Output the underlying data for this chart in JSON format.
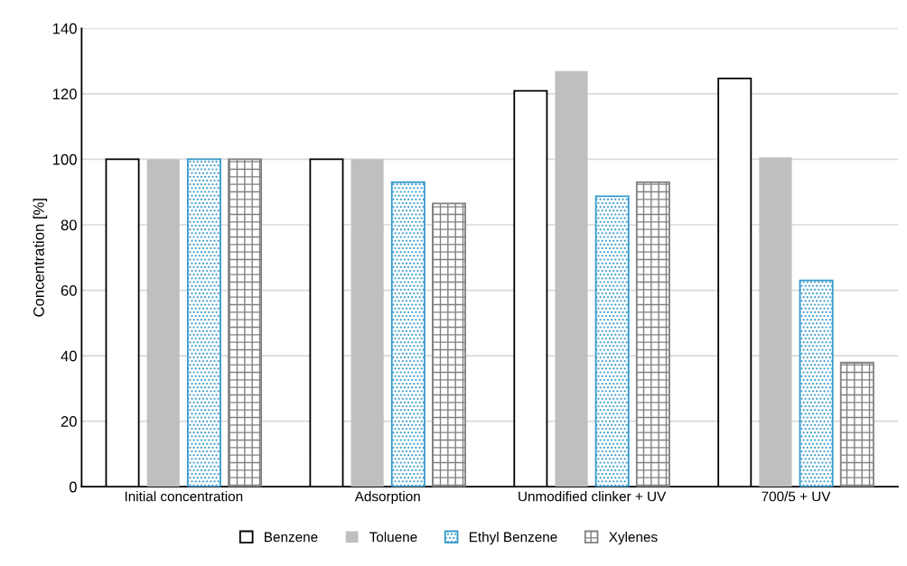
{
  "chart_data": {
    "type": "bar",
    "ylabel": "Concentration [%]",
    "categories": [
      "Initial concentration",
      "Adsorption",
      "Unmodified clinker + UV",
      "700/5 + UV"
    ],
    "series": [
      {
        "name": "Benzene",
        "color": "#ffffff",
        "values": [
          100,
          100,
          120.9,
          124.7
        ]
      },
      {
        "name": "Toluene",
        "color": "#bfbfbf",
        "values": [
          100,
          100,
          126.9,
          100.6
        ]
      },
      {
        "name": "Ethyl Benzene",
        "color": "#3399cc",
        "values": [
          100,
          93,
          88.7,
          63
        ]
      },
      {
        "name": "Xylenes",
        "color": "#808080",
        "values": [
          100,
          86.5,
          93,
          37.9
        ]
      }
    ],
    "ylim": [
      0,
      140
    ],
    "yticks": [
      0,
      20,
      40,
      60,
      80,
      100,
      120,
      140
    ],
    "grid": "y",
    "legend": "bottom"
  }
}
